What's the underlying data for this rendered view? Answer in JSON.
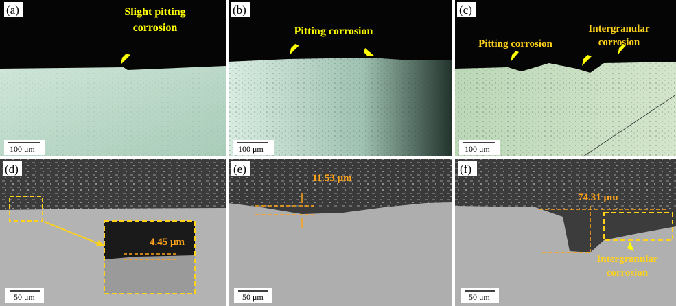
{
  "panels": [
    {
      "label": "(a)",
      "annotations": [
        "Slight pitting",
        "corrosion"
      ],
      "scale_bar": "100 μm"
    },
    {
      "label": "(b)",
      "annotations": [
        "Pitting corrosion"
      ],
      "scale_bar": "100 μm"
    },
    {
      "label": "(c)",
      "annotations": [
        "Pitting corrosion",
        "Intergranular",
        "corrosion"
      ],
      "scale_bar": "100 μm"
    },
    {
      "label": "(d)",
      "annotations": [
        "4.45 μm"
      ],
      "scale_bar": "50 μm"
    },
    {
      "label": "(e)",
      "annotations": [
        "11.53 μm"
      ],
      "scale_bar": "50 μm"
    },
    {
      "label": "(f)",
      "annotations": [
        "74.31 μm",
        "Intergranular",
        "corrosion"
      ],
      "scale_bar": "50 μm"
    }
  ]
}
